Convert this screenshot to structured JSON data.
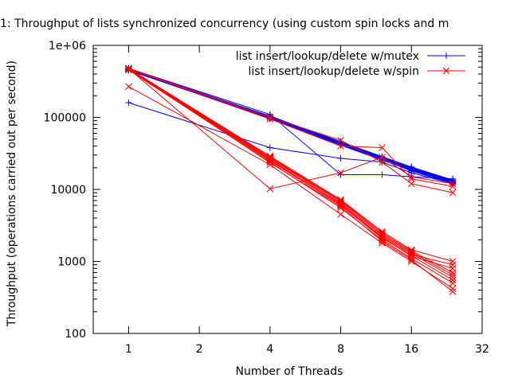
{
  "chart_data": {
    "type": "line",
    "title": "1: Throughput of lists synchronized concurrency (using custom spin locks and m",
    "xlabel": "Number of Threads",
    "ylabel": "Throughput (operations carried out per second)",
    "x_scale": "log2",
    "y_scale": "log10",
    "xlim": [
      0.707,
      32
    ],
    "ylim": [
      100,
      1000000
    ],
    "x_ticks": [
      1,
      2,
      4,
      8,
      16,
      32
    ],
    "x_tick_labels": [
      "1",
      "2",
      "4",
      "8",
      "16",
      "32"
    ],
    "y_ticks": [
      100,
      1000,
      10000,
      100000,
      1000000
    ],
    "y_tick_labels": [
      "100",
      "1000",
      "10000",
      "100000",
      "1e+06"
    ],
    "grid": false,
    "legend_position": "top-right",
    "x": [
      1,
      4,
      8,
      12,
      16,
      24
    ],
    "legend": [
      {
        "name": "list insert/lookup/delete w/mutex",
        "color": "#0000ff",
        "marker": "plus"
      },
      {
        "name": "list insert/lookup/delete w/spin",
        "color": "#ff0000",
        "marker": "cross"
      }
    ],
    "series": [
      {
        "group": "mutex",
        "color": "#0000ff",
        "values": [
          460000,
          105000,
          45000,
          28000,
          20000,
          13000
        ]
      },
      {
        "group": "mutex",
        "color": "#0000ff",
        "values": [
          470000,
          100000,
          43000,
          27000,
          19000,
          12500
        ]
      },
      {
        "group": "mutex",
        "color": "#0000ff",
        "values": [
          455000,
          98000,
          44000,
          27500,
          19500,
          12800
        ]
      },
      {
        "group": "mutex",
        "color": "#0000ff",
        "values": [
          480000,
          102000,
          46000,
          28500,
          20500,
          13500
        ]
      },
      {
        "group": "mutex",
        "color": "#0000ff",
        "values": [
          465000,
          96000,
          42000,
          26000,
          18000,
          12000
        ]
      },
      {
        "group": "mutex",
        "color": "#0000ff",
        "values": [
          450000,
          97000,
          41000,
          25500,
          18500,
          11800
        ]
      },
      {
        "group": "mutex",
        "color": "#0000ff",
        "values": [
          475000,
          104000,
          44500,
          27800,
          19800,
          12900
        ]
      },
      {
        "group": "mutex",
        "color": "#0000ff",
        "values": [
          460000,
          99000,
          45500,
          28200,
          20200,
          13200
        ]
      },
      {
        "group": "mutex",
        "color": "#0000ff",
        "values": [
          470000,
          101000,
          43500,
          26500,
          19000,
          12600
        ]
      },
      {
        "group": "mutex",
        "color": "#0000ff",
        "values": [
          458000,
          95000,
          42500,
          26800,
          18800,
          12300
        ]
      },
      {
        "group": "mutex",
        "color": "#0000ff",
        "values": [
          478000,
          110000,
          16000,
          16000,
          15000,
          14000
        ]
      },
      {
        "group": "mutex",
        "color": "#0000ff",
        "values": [
          160000,
          38000,
          27000,
          24000,
          17000,
          12000
        ]
      },
      {
        "group": "spin",
        "color": "#ff0000",
        "values": [
          470000,
          27000,
          6500,
          2300,
          1300,
          600
        ]
      },
      {
        "group": "spin",
        "color": "#ff0000",
        "values": [
          460000,
          25000,
          6000,
          2100,
          1200,
          550
        ]
      },
      {
        "group": "spin",
        "color": "#ff0000",
        "values": [
          480000,
          28000,
          7000,
          2500,
          1400,
          700
        ]
      },
      {
        "group": "spin",
        "color": "#ff0000",
        "values": [
          455000,
          24000,
          5500,
          2000,
          1100,
          500
        ]
      },
      {
        "group": "spin",
        "color": "#ff0000",
        "values": [
          475000,
          26000,
          6200,
          2200,
          1250,
          900
        ]
      },
      {
        "group": "spin",
        "color": "#ff0000",
        "values": [
          465000,
          23500,
          5800,
          1900,
          1050,
          380
        ]
      },
      {
        "group": "spin",
        "color": "#ff0000",
        "values": [
          470000,
          27500,
          6800,
          2400,
          1350,
          650
        ]
      },
      {
        "group": "spin",
        "color": "#ff0000",
        "values": [
          462000,
          25500,
          6300,
          2150,
          1180,
          800
        ]
      },
      {
        "group": "spin",
        "color": "#ff0000",
        "values": [
          478000,
          29000,
          7200,
          2600,
          1450,
          1000
        ]
      },
      {
        "group": "spin",
        "color": "#ff0000",
        "values": [
          268000,
          22000,
          4500,
          1800,
          1000,
          420
        ]
      },
      {
        "group": "spin",
        "color": "#ff0000",
        "values": [
          480000,
          100000,
          48000,
          24000,
          12000,
          9000
        ]
      },
      {
        "group": "spin",
        "color": "#ff0000",
        "values": [
          472000,
          95000,
          40000,
          38000,
          14000,
          11000
        ]
      },
      {
        "group": "spin",
        "color": "#ff0000",
        "values": [
          476000,
          10200,
          17000,
          28000,
          15000,
          12000
        ]
      }
    ]
  }
}
